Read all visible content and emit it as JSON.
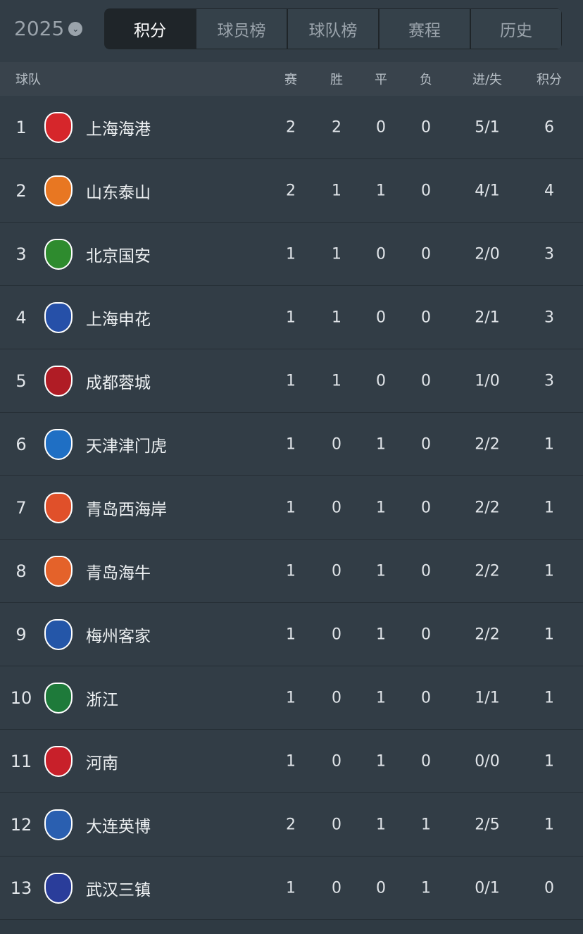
{
  "season": {
    "year": "2025",
    "icon": "chevron-down-icon"
  },
  "tabs": [
    {
      "label": "积分",
      "active": true
    },
    {
      "label": "球员榜"
    },
    {
      "label": "球队榜"
    },
    {
      "label": "赛程"
    },
    {
      "label": "历史"
    }
  ],
  "columns": {
    "team": "球队",
    "played": "赛",
    "won": "胜",
    "drawn": "平",
    "lost": "负",
    "goals": "进/失",
    "points": "积分"
  },
  "rows": [
    {
      "rank": "1",
      "team": "上海海港",
      "p": "2",
      "w": "2",
      "d": "0",
      "l": "0",
      "g": "5/1",
      "pts": "6",
      "color": "#d6262b"
    },
    {
      "rank": "2",
      "team": "山东泰山",
      "p": "2",
      "w": "1",
      "d": "1",
      "l": "0",
      "g": "4/1",
      "pts": "4",
      "color": "#e87722"
    },
    {
      "rank": "3",
      "team": "北京国安",
      "p": "1",
      "w": "1",
      "d": "0",
      "l": "0",
      "g": "2/0",
      "pts": "3",
      "color": "#2e8b2e"
    },
    {
      "rank": "4",
      "team": "上海申花",
      "p": "1",
      "w": "1",
      "d": "0",
      "l": "0",
      "g": "2/1",
      "pts": "3",
      "color": "#2650a8"
    },
    {
      "rank": "5",
      "team": "成都蓉城",
      "p": "1",
      "w": "1",
      "d": "0",
      "l": "0",
      "g": "1/0",
      "pts": "3",
      "color": "#b01c25"
    },
    {
      "rank": "6",
      "team": "天津津门虎",
      "p": "1",
      "w": "0",
      "d": "1",
      "l": "0",
      "g": "2/2",
      "pts": "1",
      "color": "#1f6fc4"
    },
    {
      "rank": "7",
      "team": "青岛西海岸",
      "p": "1",
      "w": "0",
      "d": "1",
      "l": "0",
      "g": "2/2",
      "pts": "1",
      "color": "#e0502a"
    },
    {
      "rank": "8",
      "team": "青岛海牛",
      "p": "1",
      "w": "0",
      "d": "1",
      "l": "0",
      "g": "2/2",
      "pts": "1",
      "color": "#e4622a"
    },
    {
      "rank": "9",
      "team": "梅州客家",
      "p": "1",
      "w": "0",
      "d": "1",
      "l": "0",
      "g": "2/2",
      "pts": "1",
      "color": "#2456a8"
    },
    {
      "rank": "10",
      "team": "浙江",
      "p": "1",
      "w": "0",
      "d": "1",
      "l": "0",
      "g": "1/1",
      "pts": "1",
      "color": "#1e7a3a"
    },
    {
      "rank": "11",
      "team": "河南",
      "p": "1",
      "w": "0",
      "d": "1",
      "l": "0",
      "g": "0/0",
      "pts": "1",
      "color": "#c8202a"
    },
    {
      "rank": "12",
      "team": "大连英博",
      "p": "2",
      "w": "0",
      "d": "1",
      "l": "1",
      "g": "2/5",
      "pts": "1",
      "color": "#2a5fb0"
    },
    {
      "rank": "13",
      "team": "武汉三镇",
      "p": "1",
      "w": "0",
      "d": "0",
      "l": "1",
      "g": "0/1",
      "pts": "0",
      "color": "#2a3d9a"
    }
  ]
}
